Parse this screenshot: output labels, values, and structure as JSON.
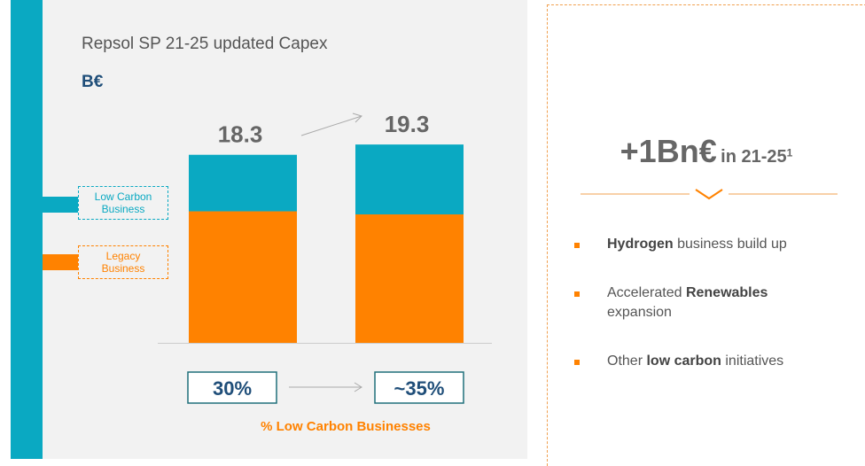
{
  "chart_data": {
    "type": "bar",
    "stacked": true,
    "title": "Repsol SP 21-25 updated Capex",
    "unit": "B€",
    "categories": [
      null,
      null
    ],
    "series": [
      {
        "name": "Low Carbon Business",
        "color": "#0aa9c2",
        "values": [
          5.5,
          6.8
        ]
      },
      {
        "name": "Legacy Business",
        "color": "#ff8200",
        "values": [
          12.8,
          12.5
        ]
      }
    ],
    "totals": [
      18.3,
      19.3
    ],
    "shares": {
      "label": "% Low Carbon Businesses",
      "values": [
        30,
        35
      ],
      "value_labels": [
        "30%",
        "~35%"
      ]
    }
  },
  "panel": {
    "headline": {
      "main": "+1Bn€",
      "period": "in 21-25",
      "note": "1"
    },
    "bullets": [
      [
        {
          "text": "Hydrogen",
          "bold": true
        },
        {
          "text": " business build up",
          "bold": false
        }
      ],
      [
        {
          "text": "Accelerated ",
          "bold": false
        },
        {
          "text": "Renewables",
          "bold": true
        },
        {
          "text": " expansion",
          "bold": false
        }
      ],
      [
        {
          "text": "Other ",
          "bold": false
        },
        {
          "text": "low carbon",
          "bold": true
        },
        {
          "text": " initiatives",
          "bold": false
        }
      ]
    ]
  }
}
